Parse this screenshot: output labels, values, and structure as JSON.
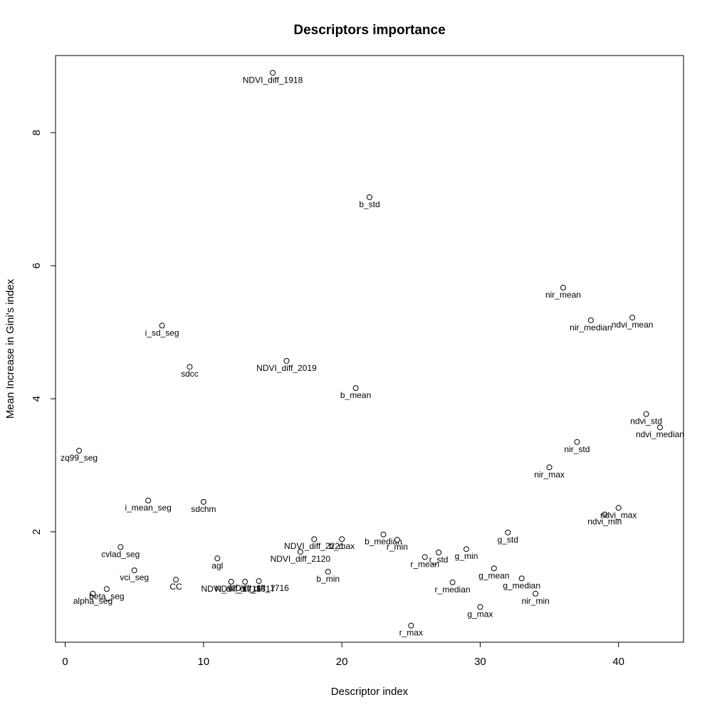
{
  "chart_data": {
    "type": "scatter",
    "title": "Descriptors importance",
    "xlabel": "Descriptor index",
    "ylabel": "Mean Increase in Gini's index",
    "xlim": [
      -0.7,
      44.7
    ],
    "ylim": [
      0.34,
      9.16
    ],
    "xticks": [
      0,
      10,
      20,
      30,
      40
    ],
    "yticks": [
      2,
      4,
      6,
      8
    ],
    "grid": false,
    "points": [
      {
        "x": 1,
        "y": 3.22,
        "label": "zq99_seg"
      },
      {
        "x": 2,
        "y": 1.07,
        "label": "alpha_seg"
      },
      {
        "x": 3,
        "y": 1.14,
        "label": "beta_seg"
      },
      {
        "x": 4,
        "y": 1.77,
        "label": "cvlad_seg"
      },
      {
        "x": 5,
        "y": 1.42,
        "label": "vci_seg"
      },
      {
        "x": 6,
        "y": 2.47,
        "label": "i_mean_seg"
      },
      {
        "x": 7,
        "y": 5.1,
        "label": "i_sd_seg"
      },
      {
        "x": 8,
        "y": 1.28,
        "label": "CC"
      },
      {
        "x": 9,
        "y": 4.48,
        "label": "sdcc"
      },
      {
        "x": 10,
        "y": 2.45,
        "label": "sdchm"
      },
      {
        "x": 11,
        "y": 1.6,
        "label": "agl"
      },
      {
        "x": 12,
        "y": 1.25,
        "label": "NDVI_diff_1716"
      },
      {
        "x": 13,
        "y": 1.25,
        "label": "NDVI_diff_1817"
      },
      {
        "x": 14,
        "y": 1.26,
        "label": "NDVI_diff_1716"
      },
      {
        "x": 15,
        "y": 8.9,
        "label": "NDVI_diff_1918"
      },
      {
        "x": 16,
        "y": 4.57,
        "label": "NDVI_diff_2019"
      },
      {
        "x": 17,
        "y": 1.7,
        "label": "NDVI_diff_2120"
      },
      {
        "x": 18,
        "y": 1.89,
        "label": "NDVI_diff_2221"
      },
      {
        "x": 19,
        "y": 1.4,
        "label": "b_min"
      },
      {
        "x": 20,
        "y": 1.89,
        "label": "b_max"
      },
      {
        "x": 21,
        "y": 4.16,
        "label": "b_mean"
      },
      {
        "x": 22,
        "y": 7.03,
        "label": "b_std"
      },
      {
        "x": 23,
        "y": 1.96,
        "label": "b_median"
      },
      {
        "x": 24,
        "y": 1.88,
        "label": "r_min"
      },
      {
        "x": 25,
        "y": 0.59,
        "label": "r_max"
      },
      {
        "x": 26,
        "y": 1.62,
        "label": "r_mean"
      },
      {
        "x": 27,
        "y": 1.69,
        "label": "r_std"
      },
      {
        "x": 28,
        "y": 1.24,
        "label": "r_median"
      },
      {
        "x": 29,
        "y": 1.74,
        "label": "g_min"
      },
      {
        "x": 30,
        "y": 0.87,
        "label": "g_max"
      },
      {
        "x": 31,
        "y": 1.45,
        "label": "g_mean"
      },
      {
        "x": 32,
        "y": 1.99,
        "label": "g_std"
      },
      {
        "x": 33,
        "y": 1.3,
        "label": "g_median"
      },
      {
        "x": 34,
        "y": 1.07,
        "label": "nir_min"
      },
      {
        "x": 35,
        "y": 2.97,
        "label": "nir_max"
      },
      {
        "x": 36,
        "y": 5.67,
        "label": "nir_mean"
      },
      {
        "x": 37,
        "y": 3.35,
        "label": "nir_std"
      },
      {
        "x": 38,
        "y": 5.18,
        "label": "nir_median"
      },
      {
        "x": 39,
        "y": 2.26,
        "label": "ndvi_min"
      },
      {
        "x": 40,
        "y": 2.36,
        "label": "ndvi_max"
      },
      {
        "x": 41,
        "y": 5.22,
        "label": "ndvi_mean"
      },
      {
        "x": 42,
        "y": 3.77,
        "label": "ndvi_std"
      },
      {
        "x": 43,
        "y": 3.57,
        "label": "ndvi_median"
      }
    ]
  }
}
